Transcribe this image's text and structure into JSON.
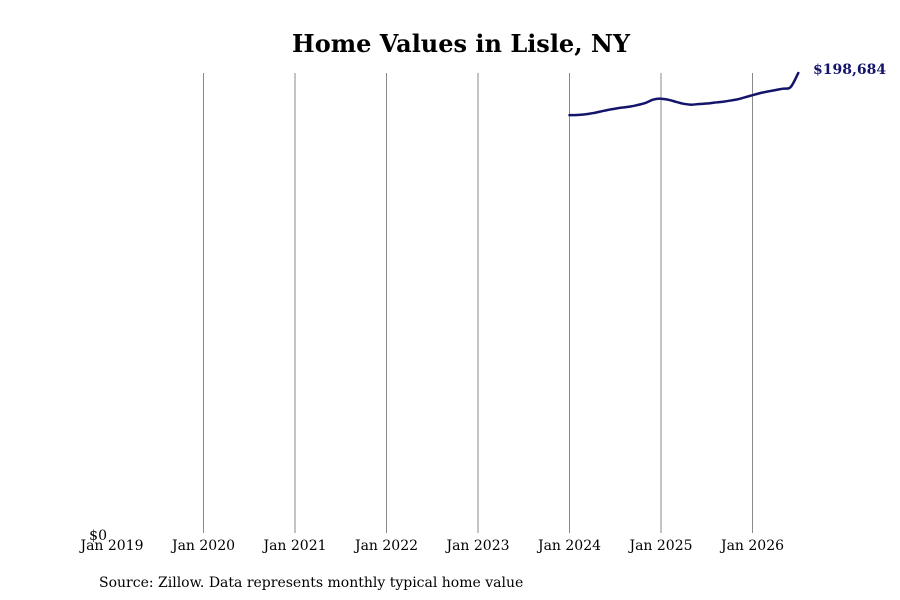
{
  "chart_data": {
    "type": "line",
    "title": "Home Values in Lisle, NY",
    "xlabel": "",
    "ylabel": "",
    "x_tick_labels": [
      "Jan 2019",
      "Jan 2020",
      "Jan 2021",
      "Jan 2022",
      "Jan 2023",
      "Jan 2024",
      "Jan 2025",
      "Jan 2026"
    ],
    "y_tick_labels": [
      "$0"
    ],
    "ylim": [
      0,
      198684
    ],
    "grid": "vertical",
    "line_color": "#14146b",
    "end_label": "$198,684",
    "series": [
      {
        "x": [
          "2024-01",
          "2024-02",
          "2024-03",
          "2024-04",
          "2024-05",
          "2024-06",
          "2024-07",
          "2024-08",
          "2024-09",
          "2024-10",
          "2024-11",
          "2024-12",
          "2025-01",
          "2025-02",
          "2025-03",
          "2025-04",
          "2025-05",
          "2025-06",
          "2025-07",
          "2025-08",
          "2025-09",
          "2025-10",
          "2025-11",
          "2025-12",
          "2026-01",
          "2026-02",
          "2026-03",
          "2026-04",
          "2026-05",
          "2026-06",
          "2026-07"
        ],
        "values": [
          180500,
          180550,
          180800,
          181300,
          182000,
          182700,
          183300,
          183800,
          184200,
          184900,
          185800,
          187200,
          187600,
          187100,
          186200,
          185400,
          185000,
          185300,
          185500,
          185900,
          186200,
          186700,
          187300,
          188200,
          189100,
          190000,
          190700,
          191300,
          191900,
          192600,
          198684
        ]
      }
    ]
  },
  "source_note": "Source: Zillow. Data represents monthly typical home value"
}
